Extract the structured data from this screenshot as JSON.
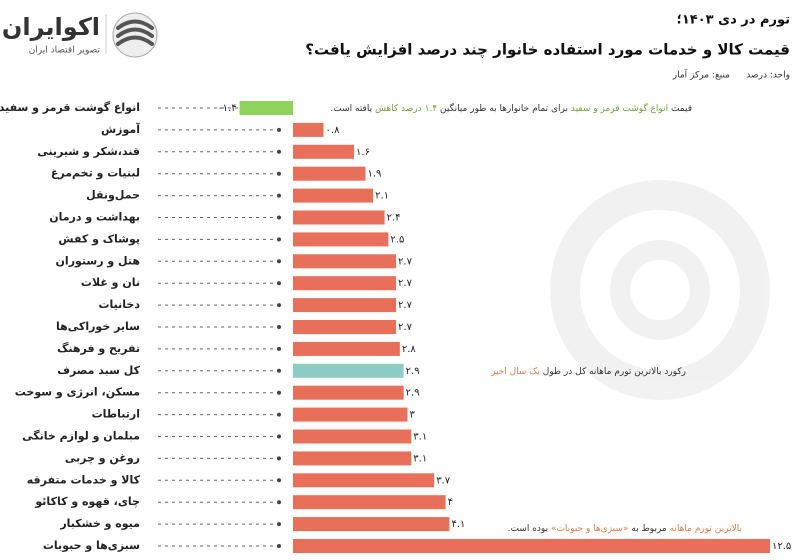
{
  "chart_data": {
    "type": "hbar",
    "kicker": "تورم در دی ۱۴۰۳؛",
    "title": "قیمت کالا و خدمات مورد استفاده خانوار چند درصد افزایش یافت؟",
    "unit": "واحد: درصد",
    "source": "منبع: مرکز آمار",
    "brand": {
      "name": "اکوایران",
      "tagline": "تصویر اقتصاد ایران"
    },
    "categories": [
      "انواع گوشت قرمز و سفید",
      "آموزش",
      "قند،شکر و شیرینی",
      "لبنیات و تخم‌مرغ",
      "حمل‌ونقل",
      "بهداشت و درمان",
      "پوشاک و کفش",
      "هتل و رستوران",
      "نان و غلات",
      "دخانیات",
      "سایر خوراکی‌ها",
      "تفریح و فرهنگ",
      "کل سبد مصرف",
      "مسکن، انرژی و سوخت",
      "ارتباطات",
      "مبلمان و لوازم خانگی",
      "روغن و چربی",
      "کالا و خدمات متفرقه",
      "چای، قهوه و کاکائو",
      "میوه و خشکبار",
      "سبزی‌ها و حبوبات"
    ],
    "values": [
      -1.4,
      0.8,
      1.6,
      1.9,
      2.1,
      2.4,
      2.5,
      2.7,
      2.7,
      2.7,
      2.7,
      2.8,
      2.9,
      2.9,
      3,
      3.1,
      3.1,
      3.7,
      4,
      4.1,
      12.5
    ],
    "value_labels": [
      "-۱.۴",
      "۰.۸",
      "۱.۶",
      "۱.۹",
      "۲.۱",
      "۲.۴",
      "۲.۵",
      "۲.۷",
      "۲.۷",
      "۲.۷",
      "۲.۷",
      "۲.۸",
      "۲.۹",
      "۲.۹",
      "۳",
      "۳.۱",
      "۳.۱",
      "۳.۷",
      "۴",
      "۴.۱",
      "۱۲.۵"
    ],
    "colors": [
      "#8fd35c",
      "#e8705a",
      "#e8705a",
      "#e8705a",
      "#e8705a",
      "#e8705a",
      "#e8705a",
      "#e8705a",
      "#e8705a",
      "#e8705a",
      "#e8705a",
      "#e8705a",
      "#8ecdc4",
      "#e8705a",
      "#e8705a",
      "#e8705a",
      "#e8705a",
      "#e8705a",
      "#e8705a",
      "#e8705a",
      "#e8705a"
    ],
    "annotations": [
      {
        "parts": [
          "قیمت ",
          "انواع گوشت قرمز و سفید",
          " برای تمام خانوارها به طور میانگین ",
          "۱.۴ درصد کاهش",
          " یافته است."
        ]
      },
      {
        "parts": [
          "رکورد بالاترین تورم ماهانه کل در طول ",
          "یک سال اخیر"
        ]
      },
      {
        "parts": [
          "بالاترین تورم ماهانه",
          " مربوط به ",
          "«سبزی‌ها و حبوبات»",
          " بوده است."
        ]
      }
    ]
  }
}
